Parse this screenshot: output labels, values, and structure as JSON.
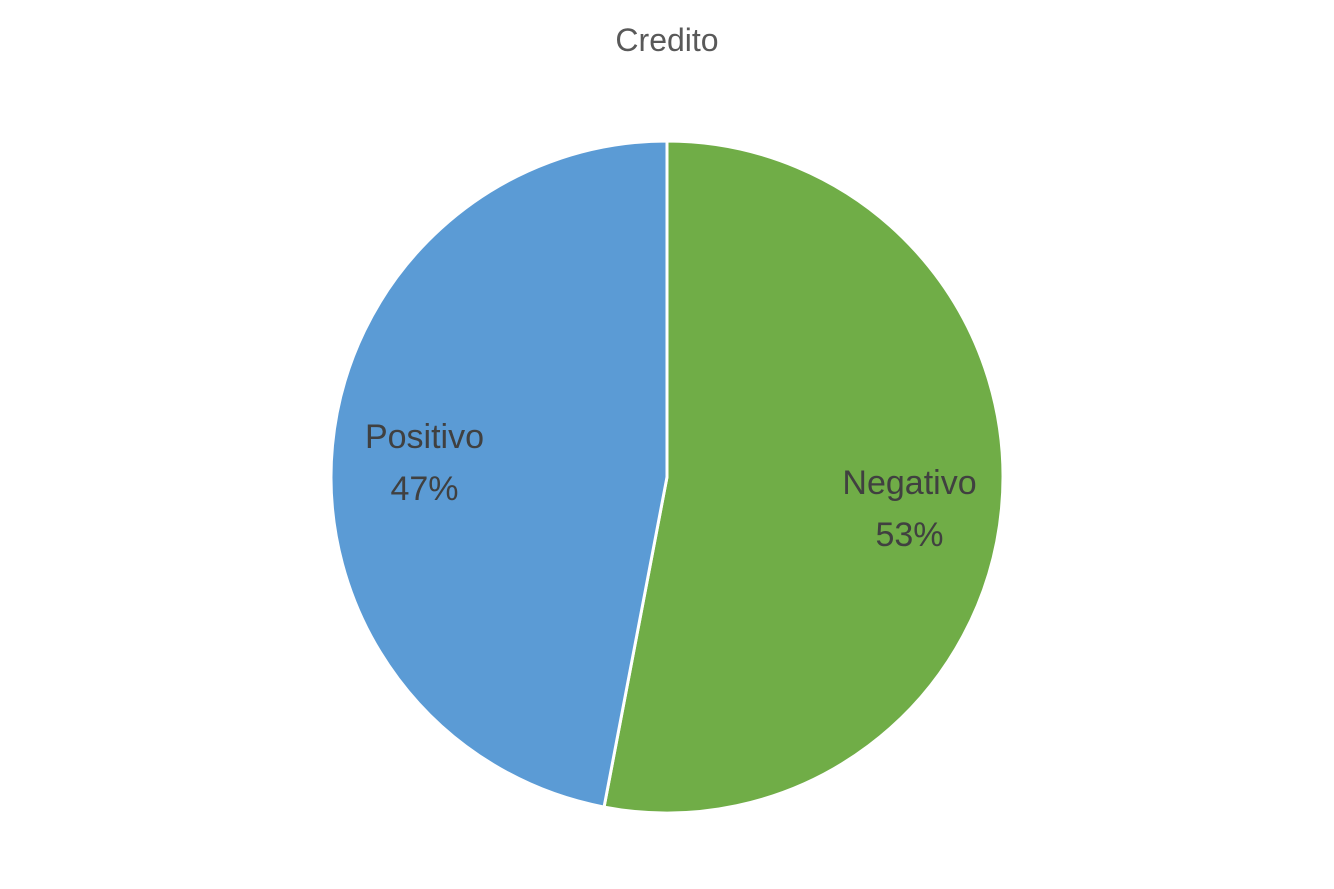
{
  "chart_data": {
    "type": "pie",
    "title": "Credito",
    "slices": [
      {
        "name": "Negativo",
        "value": 53,
        "label": "53%",
        "color": "#70AD47"
      },
      {
        "name": "Positivo",
        "value": 47,
        "label": "47%",
        "color": "#5B9BD5"
      }
    ],
    "start": "12 o'clock",
    "direction": "clockwise",
    "legend": "none"
  }
}
